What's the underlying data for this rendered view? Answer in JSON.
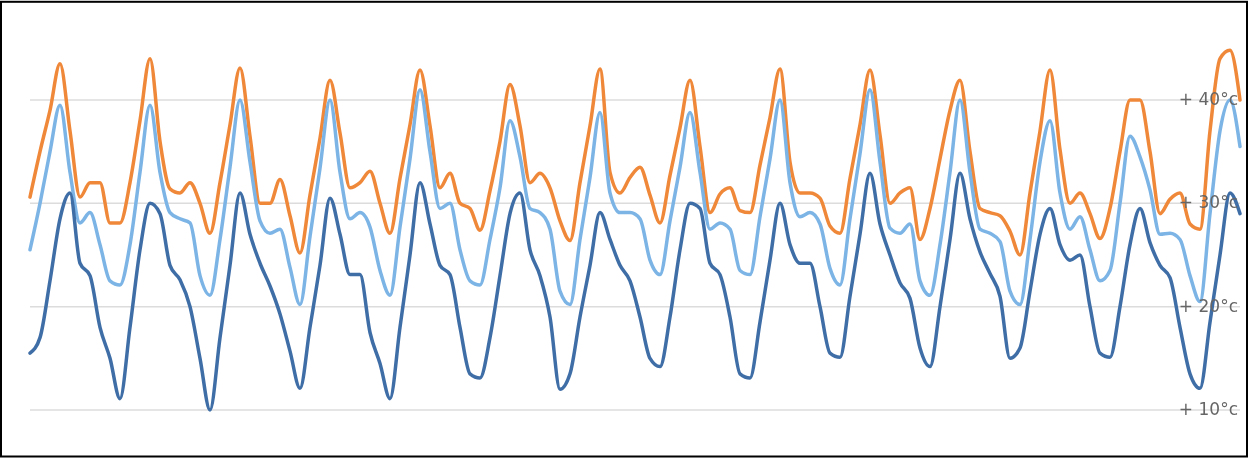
{
  "chart_data": {
    "type": "line",
    "categories": [
      null,
      null,
      null,
      null,
      null,
      null,
      null,
      null,
      null,
      null,
      null,
      null,
      null,
      null,
      null,
      null,
      null,
      null,
      null,
      null,
      null,
      null,
      null,
      null,
      null,
      null,
      null,
      null,
      null,
      null,
      null,
      null,
      null,
      null,
      null,
      null,
      null,
      null,
      null,
      null,
      null,
      null,
      null,
      null,
      null,
      null,
      null,
      null,
      null,
      null,
      null,
      null,
      null,
      null,
      null,
      null,
      null,
      null,
      null,
      null,
      null,
      null,
      null,
      null,
      null,
      null,
      null,
      null,
      null,
      null,
      null,
      null,
      null,
      null,
      null,
      null,
      null,
      null,
      null,
      null,
      null,
      null,
      null,
      null,
      null,
      null,
      null,
      null,
      null,
      null,
      null,
      null,
      null,
      null,
      null,
      null,
      null,
      null,
      null,
      null,
      null,
      null,
      null,
      null,
      null,
      null,
      null,
      null,
      null,
      null,
      null,
      null,
      null,
      null,
      null,
      null,
      null,
      null,
      null,
      null,
      null,
      null
    ],
    "series": [
      {
        "color": "#f0883a",
        "values": [
          30.6,
          35,
          39,
          43.5,
          37,
          30.6,
          32,
          32,
          28.1,
          28.1,
          32,
          38,
          44,
          36,
          31.4,
          31,
          32,
          30,
          27.1,
          32,
          37.6,
          43.1,
          36.5,
          30,
          30,
          32.3,
          28.8,
          25.2,
          30.8,
          36.3,
          41.9,
          36.8,
          31.5,
          32,
          33.1,
          30,
          27.1,
          32.4,
          37.6,
          42.9,
          37.5,
          31.5,
          32.9,
          30,
          29.5,
          27.4,
          31.2,
          36,
          41.5,
          37.5,
          32,
          32.9,
          31.5,
          28.3,
          26.4,
          32,
          37.5,
          43,
          33,
          31,
          32.5,
          33.5,
          30.8,
          28.1,
          32.7,
          37.3,
          41.9,
          35.5,
          29.1,
          30.9,
          31.5,
          29.3,
          29.1,
          33.7,
          38.3,
          43,
          34,
          31,
          31,
          30.5,
          27.8,
          27.1,
          32.4,
          37.6,
          42.9,
          36.6,
          30,
          31,
          31.5,
          26.5,
          29.5,
          34.3,
          39,
          41.9,
          35,
          29.5,
          29.1,
          28.8,
          27.3,
          25,
          31,
          37,
          42.9,
          35.2,
          30,
          31,
          29,
          26.6,
          29.5,
          35,
          40,
          40,
          35,
          29,
          30.4,
          31,
          28,
          27.5,
          37,
          44,
          44.8,
          40
        ]
      },
      {
        "color": "#7cb4e6",
        "values": [
          25.5,
          30,
          35,
          39.5,
          33,
          28.1,
          29.1,
          26,
          22.5,
          22.1,
          26,
          33,
          39.5,
          33,
          29.1,
          28.5,
          28.1,
          23,
          21.1,
          26.5,
          33.5,
          40,
          34,
          28.3,
          27.1,
          27.5,
          23.8,
          20.2,
          26.8,
          33.4,
          40,
          33,
          28.5,
          29.1,
          27.7,
          23.5,
          21.1,
          27.7,
          34.3,
          41,
          35,
          29.5,
          30,
          25.5,
          22.5,
          22.1,
          26.5,
          31.5,
          38,
          34.5,
          29.5,
          29.1,
          27.5,
          21.5,
          20.2,
          26.5,
          32.5,
          38.8,
          31,
          29.1,
          29.1,
          28.5,
          24.5,
          23.1,
          28.3,
          33.5,
          38.8,
          33,
          27.5,
          28.1,
          27.5,
          23.5,
          23.1,
          28.7,
          34.3,
          40,
          32,
          28.7,
          29.1,
          28,
          23.7,
          22.1,
          28.5,
          34.8,
          41,
          34,
          27.6,
          27.1,
          28,
          22.5,
          21.1,
          26,
          33,
          40,
          33,
          27.5,
          27.1,
          26.3,
          21.5,
          20.2,
          26.5,
          34,
          38,
          31,
          27.5,
          28.7,
          25.5,
          22.5,
          23.5,
          30,
          36.5,
          34.5,
          31.3,
          27,
          27.1,
          26.5,
          23,
          20.5,
          29,
          37,
          40,
          35.5
        ]
      },
      {
        "color": "#3f6ea7",
        "values": [
          15.5,
          17,
          22.5,
          28.5,
          31,
          24.2,
          23,
          18,
          15,
          11.1,
          18,
          25.5,
          30,
          29,
          24,
          22.6,
          20,
          15,
          10,
          17,
          24,
          31,
          27,
          24.2,
          22,
          19.3,
          15.7,
          12.1,
          18,
          24,
          30.5,
          27,
          23.1,
          23.1,
          17.5,
          14.5,
          11.1,
          18,
          25,
          32,
          28,
          24,
          23.1,
          18,
          13.5,
          13.1,
          17,
          23,
          29,
          31,
          25.5,
          23,
          19,
          12,
          13.5,
          19,
          24,
          29.1,
          26.5,
          24,
          22.5,
          19,
          15,
          14.2,
          19,
          25.5,
          30,
          29.5,
          24.2,
          23.1,
          19,
          13.5,
          13.1,
          18.5,
          24.5,
          30,
          26,
          24.2,
          24.2,
          20,
          15.5,
          15.1,
          21,
          27,
          32.9,
          28,
          25,
          22.3,
          20.8,
          16,
          14.2,
          20,
          26.5,
          32.9,
          28.5,
          25.3,
          23.2,
          21,
          15,
          16,
          21.5,
          27,
          29.5,
          26,
          24.5,
          25,
          20,
          15.5,
          15.1,
          20,
          26,
          29.5,
          26.2,
          24,
          22.8,
          18,
          13.5,
          12.1,
          18.5,
          25,
          31,
          29
        ]
      }
    ],
    "ylim": [
      5.5,
      49.5
    ],
    "yticks": [
      {
        "value": 10,
        "label": "+ 10°c"
      },
      {
        "value": 20,
        "label": "+ 20°c"
      },
      {
        "value": 30,
        "label": "+ 30°c"
      },
      {
        "value": 40,
        "label": "+ 40°c"
      }
    ],
    "grid": "y",
    "tick_labels": "y",
    "marker": "none",
    "line_style": "solid"
  }
}
